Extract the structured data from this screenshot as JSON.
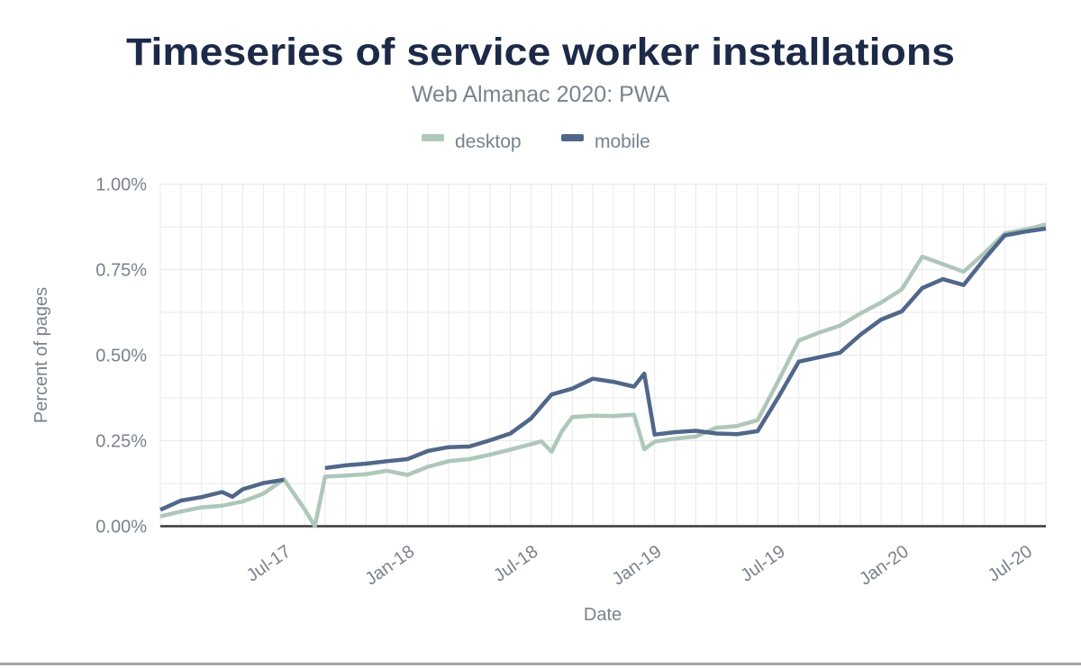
{
  "header": {
    "title": "Timeseries of service worker installations",
    "subtitle": "Web Almanac 2020: PWA"
  },
  "legend": {
    "items": [
      {
        "label": "desktop",
        "color": "#aec7b9"
      },
      {
        "label": "mobile",
        "color": "#50678a"
      }
    ]
  },
  "colors": {
    "title": "#1c2a47",
    "muted_text": "#7a828c",
    "gridline": "#e8e8ea",
    "zero_axis": "#39393b",
    "bottom_divider": "#a3a3ac",
    "desktop_series": "#aec7b9",
    "mobile_series": "#50678a"
  },
  "chart_data": {
    "type": "line",
    "title": "Timeseries of service worker installations",
    "subtitle": "Web Almanac 2020: PWA",
    "xlabel": "Date",
    "ylabel": "Percent of pages",
    "legend_position": "top",
    "grid": {
      "x_interval_months": 1,
      "y_interval": 0.125
    },
    "x_unit": "month index from Jan-2017 (fractional = mid-month crawl)",
    "months": [
      "Jan-17",
      "Feb-17",
      "Mar-17",
      "Apr-17",
      "May-17",
      "Jun-17",
      "Jul-17",
      "Aug-17",
      "Sep-17",
      "Oct-17",
      "Nov-17",
      "Dec-17",
      "Jan-18",
      "Feb-18",
      "Mar-18",
      "Apr-18",
      "May-18",
      "Jun-18",
      "Jul-18",
      "Aug-18",
      "Sep-18",
      "Oct-18",
      "Nov-18",
      "Dec-18",
      "Jan-19",
      "Feb-19",
      "Mar-19",
      "Apr-19",
      "May-19",
      "Jun-19",
      "Jul-19",
      "Aug-19",
      "Sep-19",
      "Oct-19",
      "Nov-19",
      "Dec-19",
      "Jan-20",
      "Feb-20",
      "Mar-20",
      "Apr-20",
      "May-20",
      "Jun-20",
      "Jul-20",
      "Aug-20"
    ],
    "x_ticks": [
      {
        "x": 6,
        "label": "Jul-17"
      },
      {
        "x": 12,
        "label": "Jan-18"
      },
      {
        "x": 18,
        "label": "Jul-18"
      },
      {
        "x": 24,
        "label": "Jan-19"
      },
      {
        "x": 30,
        "label": "Jul-19"
      },
      {
        "x": 36,
        "label": "Jan-20"
      },
      {
        "x": 42,
        "label": "Jul-20"
      }
    ],
    "y_ticks": [
      {
        "value": 0,
        "label": "0.00%"
      },
      {
        "value": 0.25,
        "label": "0.25%"
      },
      {
        "value": 0.5,
        "label": "0.50%"
      },
      {
        "value": 0.75,
        "label": "0.75%"
      },
      {
        "value": 1,
        "label": "1.00%"
      }
    ],
    "ylim": [
      0,
      1.0
    ],
    "xlim": [
      0,
      43
    ],
    "series": [
      {
        "name": "desktop",
        "color": "#aec7b9",
        "points": [
          [
            0,
            0.029
          ],
          [
            1,
            0.043
          ],
          [
            2,
            0.055
          ],
          [
            3,
            0.06
          ],
          [
            4,
            0.072
          ],
          [
            5,
            0.095
          ],
          [
            6,
            0.137
          ],
          [
            7,
            0.05
          ],
          [
            7.5,
            0
          ],
          [
            8,
            0.145
          ],
          [
            9,
            0.148
          ],
          [
            10,
            0.152
          ],
          [
            11,
            0.162
          ],
          [
            12,
            0.15
          ],
          [
            13,
            0.174
          ],
          [
            14,
            0.19
          ],
          [
            15,
            0.196
          ],
          [
            16,
            0.209
          ],
          [
            17,
            0.224
          ],
          [
            18,
            0.24
          ],
          [
            18.5,
            0.248
          ],
          [
            19,
            0.218
          ],
          [
            19.5,
            0.278
          ],
          [
            20,
            0.319
          ],
          [
            21,
            0.323
          ],
          [
            22,
            0.322
          ],
          [
            23,
            0.326
          ],
          [
            23.5,
            0.225
          ],
          [
            24,
            0.247
          ],
          [
            25,
            0.256
          ],
          [
            26,
            0.262
          ],
          [
            27,
            0.288
          ],
          [
            28,
            0.293
          ],
          [
            29,
            0.31
          ],
          [
            30,
            0.424
          ],
          [
            31,
            0.543
          ],
          [
            32,
            0.566
          ],
          [
            33,
            0.586
          ],
          [
            34,
            0.622
          ],
          [
            35,
            0.654
          ],
          [
            36,
            0.692
          ],
          [
            37,
            0.788
          ],
          [
            38,
            0.766
          ],
          [
            39,
            0.744
          ],
          [
            40,
            0.797
          ],
          [
            41,
            0.856
          ],
          [
            42,
            0.867
          ],
          [
            43,
            0.882
          ]
        ]
      },
      {
        "name": "mobile",
        "color": "#50678a",
        "points": [
          [
            0,
            0.048
          ],
          [
            1,
            0.075
          ],
          [
            2,
            0.085
          ],
          [
            3,
            0.1
          ],
          [
            3.5,
            0.086
          ],
          [
            4,
            0.108
          ],
          [
            5,
            0.126
          ],
          [
            6,
            0.136
          ],
          [
            7,
            null
          ],
          [
            8,
            0.17
          ],
          [
            9,
            0.178
          ],
          [
            10,
            0.183
          ],
          [
            11,
            0.19
          ],
          [
            12,
            0.196
          ],
          [
            13,
            0.22
          ],
          [
            14,
            0.231
          ],
          [
            15,
            0.233
          ],
          [
            16,
            0.251
          ],
          [
            17,
            0.271
          ],
          [
            18,
            0.315
          ],
          [
            19,
            0.385
          ],
          [
            20,
            0.402
          ],
          [
            21,
            0.431
          ],
          [
            22,
            0.422
          ],
          [
            23,
            0.408
          ],
          [
            23.5,
            0.446
          ],
          [
            24,
            0.268
          ],
          [
            25,
            0.275
          ],
          [
            26,
            0.279
          ],
          [
            27,
            0.271
          ],
          [
            28,
            0.269
          ],
          [
            29,
            0.278
          ],
          [
            30,
            0.376
          ],
          [
            31,
            0.481
          ],
          [
            32,
            0.494
          ],
          [
            33,
            0.507
          ],
          [
            34,
            0.56
          ],
          [
            35,
            0.604
          ],
          [
            36,
            0.628
          ],
          [
            37,
            0.696
          ],
          [
            38,
            0.722
          ],
          [
            39,
            0.705
          ],
          [
            40,
            0.78
          ],
          [
            41,
            0.85
          ],
          [
            42,
            0.861
          ],
          [
            43,
            0.87
          ]
        ]
      }
    ]
  }
}
